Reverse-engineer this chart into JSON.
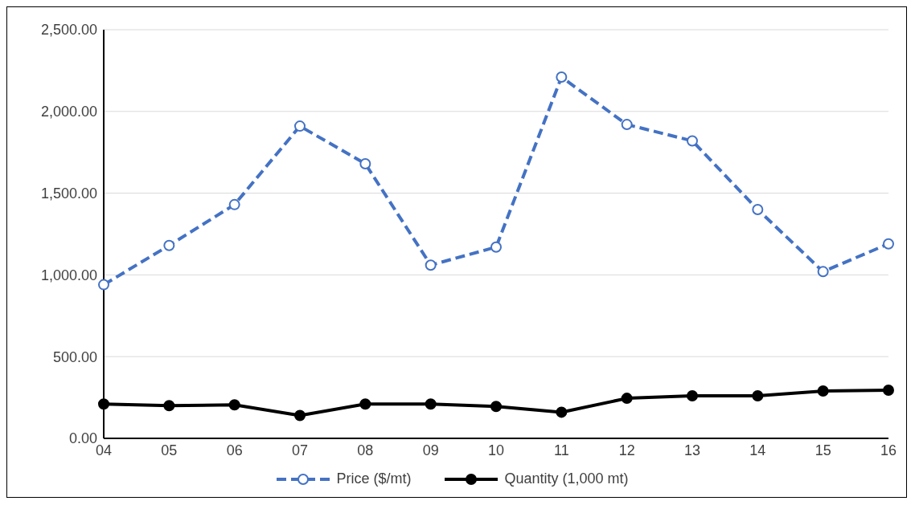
{
  "chart_data": {
    "type": "line",
    "categories": [
      "04",
      "05",
      "06",
      "07",
      "08",
      "09",
      "10",
      "11",
      "12",
      "13",
      "14",
      "15",
      "16"
    ],
    "series": [
      {
        "name": "Price ($/mt)",
        "color": "#4472c4",
        "line_style": "dashed",
        "marker": "circle",
        "values": [
          940,
          1180,
          1430,
          1910,
          1680,
          1060,
          1170,
          2210,
          1920,
          1820,
          1400,
          1020,
          1190
        ]
      },
      {
        "name": "Quantity (1,000 mt)",
        "color": "#000000",
        "line_style": "solid",
        "marker": "circle",
        "values": [
          210,
          200,
          205,
          140,
          210,
          210,
          195,
          160,
          245,
          260,
          260,
          290,
          295
        ]
      }
    ],
    "ylim": [
      0,
      2500
    ],
    "yticks": [
      {
        "value": 0,
        "label": "0.00"
      },
      {
        "value": 500,
        "label": "500.00"
      },
      {
        "value": 1000,
        "label": "1,000.00"
      },
      {
        "value": 1500,
        "label": "1,500.00"
      },
      {
        "value": 2000,
        "label": "2,000.00"
      },
      {
        "value": 2500,
        "label": "2,500.00"
      }
    ],
    "grid": "y",
    "legend": "bottom"
  }
}
